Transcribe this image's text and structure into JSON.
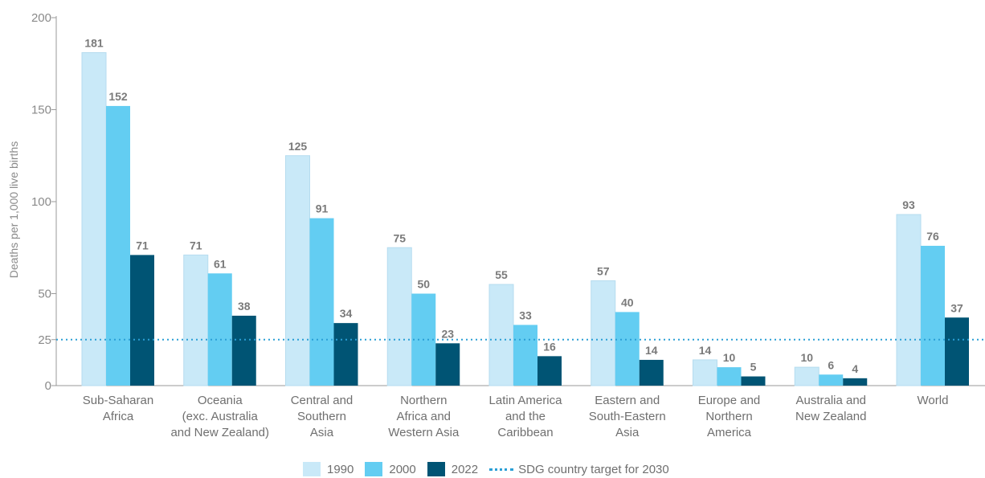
{
  "chart_data": {
    "type": "bar",
    "categories": [
      [
        "Sub-Saharan",
        "Africa"
      ],
      [
        "Oceania",
        "(exc. Australia",
        "and New Zealand)"
      ],
      [
        "Central and",
        "Southern",
        "Asia"
      ],
      [
        "Northern",
        "Africa and",
        "Western Asia"
      ],
      [
        "Latin America",
        "and the",
        "Caribbean"
      ],
      [
        "Eastern and",
        "South-Eastern",
        "Asia"
      ],
      [
        "Europe and",
        "Northern",
        "America"
      ],
      [
        "Australia and",
        "New Zealand"
      ],
      [
        "World"
      ]
    ],
    "series": [
      {
        "name": "1990",
        "color": "#c9e9f8",
        "values": [
          181,
          71,
          125,
          75,
          55,
          57,
          14,
          10,
          93
        ]
      },
      {
        "name": "2000",
        "color": "#63cdf2",
        "values": [
          152,
          61,
          91,
          50,
          33,
          40,
          10,
          6,
          76
        ]
      },
      {
        "name": "2022",
        "color": "#005474",
        "values": [
          71,
          38,
          34,
          23,
          16,
          14,
          5,
          4,
          37
        ]
      }
    ],
    "ylabel": "Deaths per 1,000 live births",
    "ylim": [
      0,
      200
    ],
    "yticks": [
      0,
      25,
      50,
      100,
      150,
      200
    ],
    "reference_line": {
      "label": "SDG country target for 2030",
      "value": 25,
      "color": "#2a9fd6"
    },
    "legend_position": "bottom-center",
    "grid": false
  }
}
